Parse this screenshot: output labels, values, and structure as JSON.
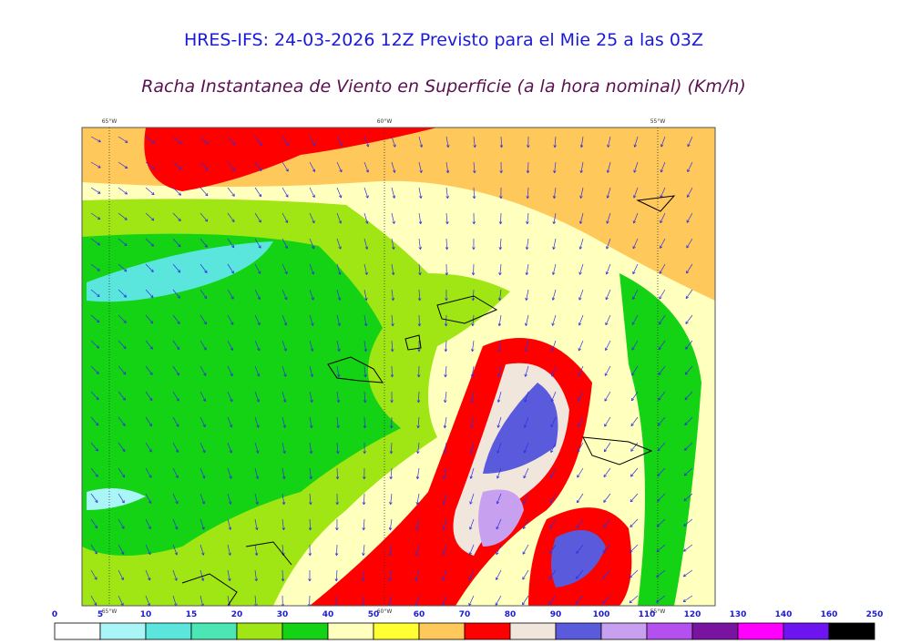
{
  "header": {
    "title": "HRES-IFS: 24-03-2026 12Z Previsto para el Mie 25 a las 03Z",
    "subtitle": "Racha Instantanea de Viento en Superficie (a la hora nominal) (Km/h)"
  },
  "map": {
    "lon_labels": [
      "65°W",
      "60°W",
      "55°W"
    ]
  },
  "colorbar": {
    "ticks": [
      0,
      5,
      10,
      15,
      20,
      30,
      40,
      50,
      60,
      70,
      80,
      90,
      100,
      110,
      120,
      130,
      140,
      160,
      250
    ],
    "colors": [
      "#ffffff",
      "#aaf5f5",
      "#5ae6dc",
      "#4be6b4",
      "#a0e614",
      "#14d214",
      "#ffffbe",
      "#ffff32",
      "#ffc85a",
      "#ff0000",
      "#f0e6dc",
      "#5a5adc",
      "#c8a0f0",
      "#b450f0",
      "#7814a0",
      "#ff00ff",
      "#6e14f0",
      "#000000"
    ]
  }
}
